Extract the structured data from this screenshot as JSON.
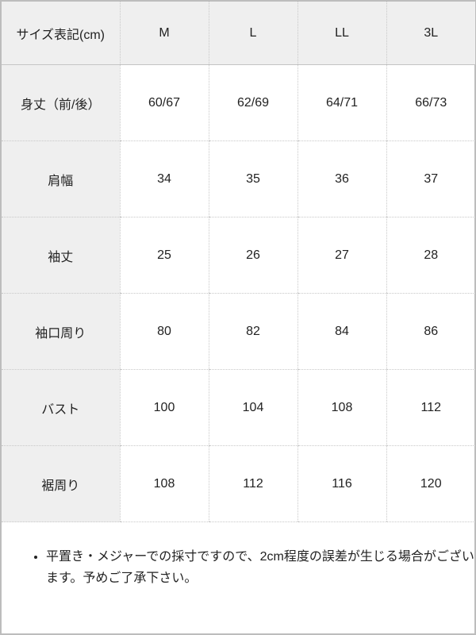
{
  "table": {
    "header": [
      "サイズ表記(cm)",
      "M",
      "L",
      "LL",
      "3L"
    ],
    "rows": [
      [
        "身丈（前/後）",
        "60/67",
        "62/69",
        "64/71",
        "66/73"
      ],
      [
        "肩幅",
        "34",
        "35",
        "36",
        "37"
      ],
      [
        "袖丈",
        "25",
        "26",
        "27",
        "28"
      ],
      [
        "袖口周り",
        "80",
        "82",
        "84",
        "86"
      ],
      [
        "バスト",
        "100",
        "104",
        "108",
        "112"
      ],
      [
        "裾周り",
        "108",
        "112",
        "116",
        "120"
      ]
    ]
  },
  "note": "平置き・メジャーでの採寸ですので、2cm程度の誤差が生じる場合がございます。予めご了承下さい。"
}
